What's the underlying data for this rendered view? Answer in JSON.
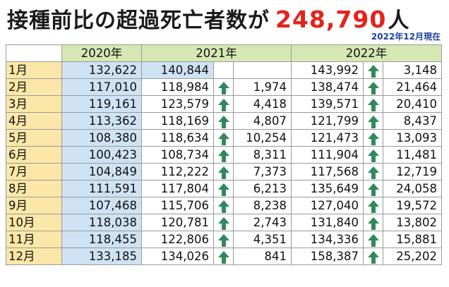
{
  "headline": {
    "text": "接種前比の超過死亡者数が",
    "number": "248,790",
    "unit": "人"
  },
  "as_of": "2022年12月現在",
  "colors": {
    "accent_red": "#e3231b",
    "header_green": "#d5e8b4",
    "month_yellow": "#fbe7a8",
    "highlight_blue": "#cfe2f3",
    "arrow_green": "#2f8a5a"
  },
  "table": {
    "year_headers": [
      "2020年",
      "2021年",
      "2022年"
    ],
    "rows": [
      {
        "month": "1月",
        "y2020": "132,622",
        "y2021": "140,844",
        "d2021": "",
        "up2021": false,
        "y2022": "143,992",
        "d2022": "3,148"
      },
      {
        "month": "2月",
        "y2020": "117,010",
        "y2021": "118,984",
        "d2021": "1,974",
        "up2021": true,
        "y2022": "138,474",
        "d2022": "21,464"
      },
      {
        "month": "3月",
        "y2020": "119,161",
        "y2021": "123,579",
        "d2021": "4,418",
        "up2021": true,
        "y2022": "139,571",
        "d2022": "20,410"
      },
      {
        "month": "4月",
        "y2020": "113,362",
        "y2021": "118,169",
        "d2021": "4,807",
        "up2021": true,
        "y2022": "121,799",
        "d2022": "8,437"
      },
      {
        "month": "5月",
        "y2020": "108,380",
        "y2021": "118,634",
        "d2021": "10,254",
        "up2021": true,
        "y2022": "121,473",
        "d2022": "13,093"
      },
      {
        "month": "6月",
        "y2020": "100,423",
        "y2021": "108,734",
        "d2021": "8,311",
        "up2021": true,
        "y2022": "111,904",
        "d2022": "11,481"
      },
      {
        "month": "7月",
        "y2020": "104,849",
        "y2021": "112,222",
        "d2021": "7,373",
        "up2021": true,
        "y2022": "117,568",
        "d2022": "12,719"
      },
      {
        "month": "8月",
        "y2020": "111,591",
        "y2021": "117,804",
        "d2021": "6,213",
        "up2021": true,
        "y2022": "135,649",
        "d2022": "24,058"
      },
      {
        "month": "9月",
        "y2020": "107,468",
        "y2021": "115,706",
        "d2021": "8,238",
        "up2021": true,
        "y2022": "127,040",
        "d2022": "19,572"
      },
      {
        "month": "10月",
        "y2020": "118,038",
        "y2021": "120,781",
        "d2021": "2,743",
        "up2021": true,
        "y2022": "131,840",
        "d2022": "13,802"
      },
      {
        "month": "11月",
        "y2020": "118,455",
        "y2021": "122,806",
        "d2021": "4,351",
        "up2021": true,
        "y2022": "134,336",
        "d2022": "15,881"
      },
      {
        "month": "12月",
        "y2020": "133,185",
        "y2021": "134,026",
        "d2021": "841",
        "up2021": true,
        "y2022": "158,387",
        "d2022": "25,202"
      }
    ]
  }
}
